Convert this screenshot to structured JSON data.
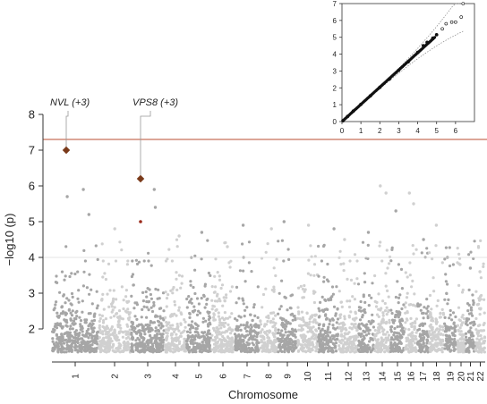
{
  "chart_data": [
    {
      "type": "scatter",
      "subtype": "manhattan",
      "xlabel": "Chromosome",
      "ylabel": "−log10 (p)",
      "ylim": [
        1.2,
        8.2
      ],
      "yticks": [
        2,
        3,
        4,
        5,
        6,
        7,
        8
      ],
      "chromosomes": [
        "1",
        "2",
        "3",
        "4",
        "5",
        "6",
        "7",
        "8",
        "9",
        "10",
        "11",
        "12",
        "13",
        "14",
        "15",
        "16",
        "17",
        "18",
        "19",
        "20",
        "21",
        "22"
      ],
      "chromosome_colors": [
        "#a6a6a6",
        "#d0d0d0"
      ],
      "significance_line": {
        "y": 7.3,
        "color": "#c8725a"
      },
      "suggestive_line": {
        "y": 4.0,
        "color": "#dddddd"
      },
      "peak_points_per_chromosome": [
        {
          "chr": "1",
          "y": 5.9
        },
        {
          "chr": "1",
          "y": 5.7
        },
        {
          "chr": "1",
          "y": 5.2
        },
        {
          "chr": "2",
          "y": 4.8
        },
        {
          "chr": "3",
          "y": 5.9
        },
        {
          "chr": "3",
          "y": 5.4
        },
        {
          "chr": "4",
          "y": 4.6
        },
        {
          "chr": "5",
          "y": 4.7
        },
        {
          "chr": "6",
          "y": 4.3
        },
        {
          "chr": "7",
          "y": 4.9
        },
        {
          "chr": "8",
          "y": 4.8
        },
        {
          "chr": "9",
          "y": 5.0
        },
        {
          "chr": "10",
          "y": 4.9
        },
        {
          "chr": "11",
          "y": 4.8
        },
        {
          "chr": "12",
          "y": 4.5
        },
        {
          "chr": "13",
          "y": 4.7
        },
        {
          "chr": "14",
          "y": 6.0
        },
        {
          "chr": "14",
          "y": 5.8
        },
        {
          "chr": "15",
          "y": 5.3
        },
        {
          "chr": "16",
          "y": 5.8
        },
        {
          "chr": "16",
          "y": 5.5
        },
        {
          "chr": "17",
          "y": 4.5
        },
        {
          "chr": "18",
          "y": 4.9
        },
        {
          "chr": "19",
          "y": 4.0
        },
        {
          "chr": "20",
          "y": 3.8
        },
        {
          "chr": "21",
          "y": 3.7
        },
        {
          "chr": "22",
          "y": 3.6
        }
      ],
      "highlighted_points": [
        {
          "chr": "1",
          "y": 7.0,
          "label": "NVL (+3)",
          "color": "#7a3a1a"
        },
        {
          "chr": "3",
          "y": 6.2,
          "label": "VPS8 (+3)",
          "color": "#7a3a1a"
        },
        {
          "chr": "3",
          "y": 5.0,
          "label": "",
          "color": "#9a2a1a"
        }
      ]
    },
    {
      "type": "scatter",
      "subtype": "qq-plot",
      "xlim": [
        0,
        7
      ],
      "ylim": [
        0,
        7
      ],
      "xticks": [
        0,
        1,
        2,
        3,
        4,
        5,
        6
      ],
      "yticks": [
        0,
        1,
        2,
        3,
        4,
        5,
        6,
        7
      ],
      "diagonal": true,
      "confidence_band": true,
      "points": [
        [
          0.05,
          0.05
        ],
        [
          0.3,
          0.3
        ],
        [
          0.6,
          0.62
        ],
        [
          1.0,
          1.02
        ],
        [
          1.5,
          1.52
        ],
        [
          2.0,
          2.03
        ],
        [
          2.5,
          2.52
        ],
        [
          3.0,
          3.05
        ],
        [
          3.5,
          3.55
        ],
        [
          4.0,
          4.1
        ],
        [
          4.3,
          4.5
        ],
        [
          4.5,
          4.7
        ],
        [
          4.8,
          4.95
        ],
        [
          5.0,
          5.15
        ],
        [
          5.3,
          5.5
        ],
        [
          5.5,
          5.8
        ],
        [
          5.8,
          5.9
        ],
        [
          6.0,
          5.9
        ],
        [
          6.3,
          6.2
        ],
        [
          6.4,
          7.0
        ]
      ]
    }
  ]
}
